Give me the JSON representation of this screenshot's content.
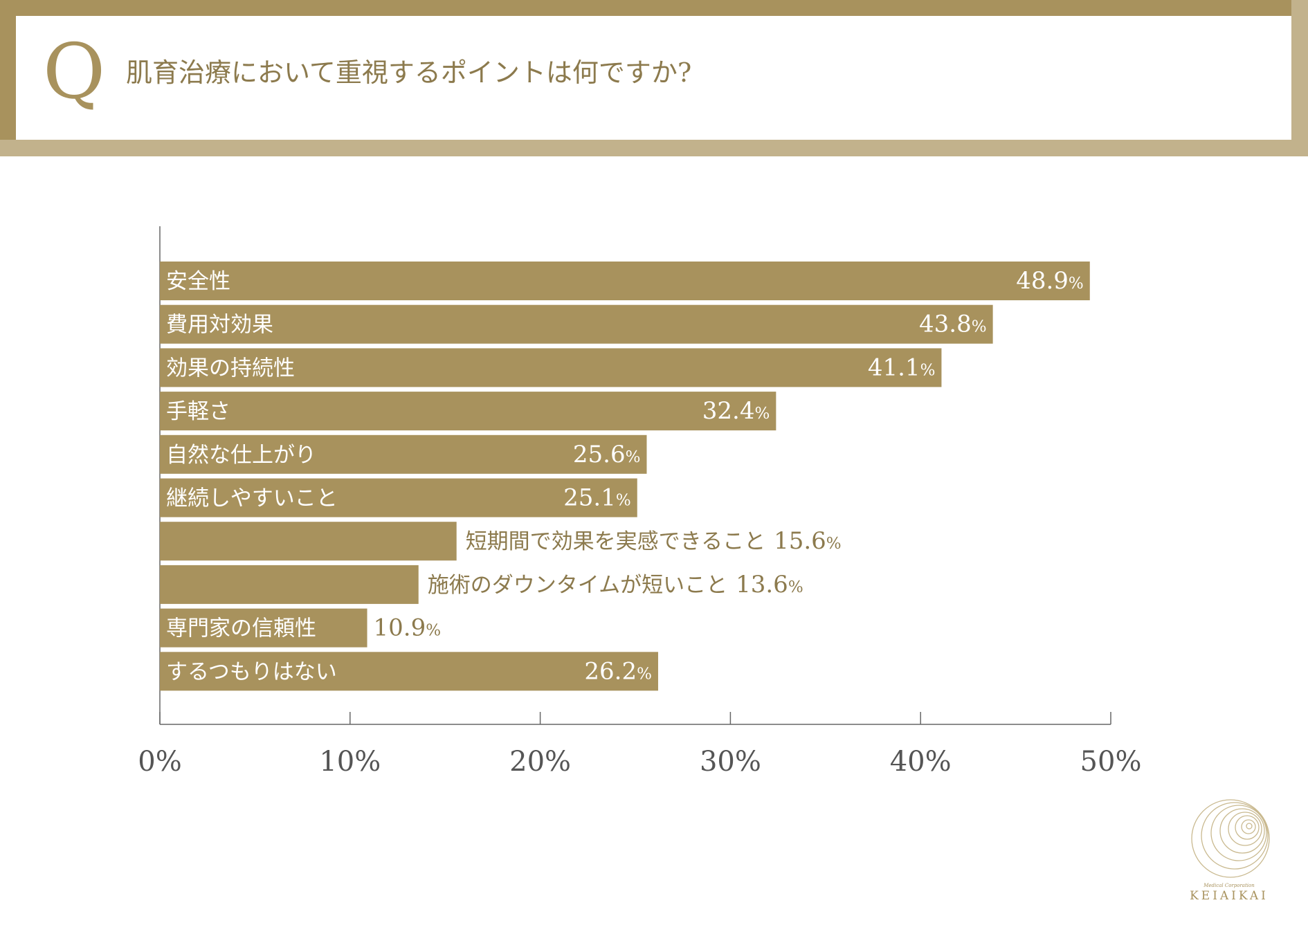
{
  "header": {
    "q_letter": "Q",
    "question": "肌育治療において重視するポイントは何ですか?"
  },
  "chart_data": {
    "type": "bar",
    "orientation": "horizontal",
    "categories": [
      "安全性",
      "費用対効果",
      "効果の持続性",
      "手軽さ",
      "自然な仕上がり",
      "継続しやすいこと",
      "短期間で効果を実感できること",
      "施術のダウンタイムが短いこと",
      "専門家の信頼性",
      "するつもりはない"
    ],
    "values": [
      48.9,
      43.8,
      41.1,
      32.4,
      25.6,
      25.1,
      15.6,
      13.6,
      10.9,
      26.2
    ],
    "value_labels": [
      "48.9",
      "43.8",
      "41.1",
      "32.4",
      "25.6",
      "25.1",
      "15.6",
      "13.6",
      "10.9",
      "26.2"
    ],
    "value_unit": "%",
    "xlim": [
      0,
      50
    ],
    "x_ticks": [
      0,
      10,
      20,
      30,
      40,
      50
    ],
    "x_tick_labels": [
      "0%",
      "10%",
      "20%",
      "30%",
      "40%",
      "50%"
    ],
    "bar_color": "#a8925d",
    "grid": false,
    "legend": false
  },
  "logo": {
    "subtitle": "Medical Corporation",
    "name": "KEIAIKAI"
  }
}
